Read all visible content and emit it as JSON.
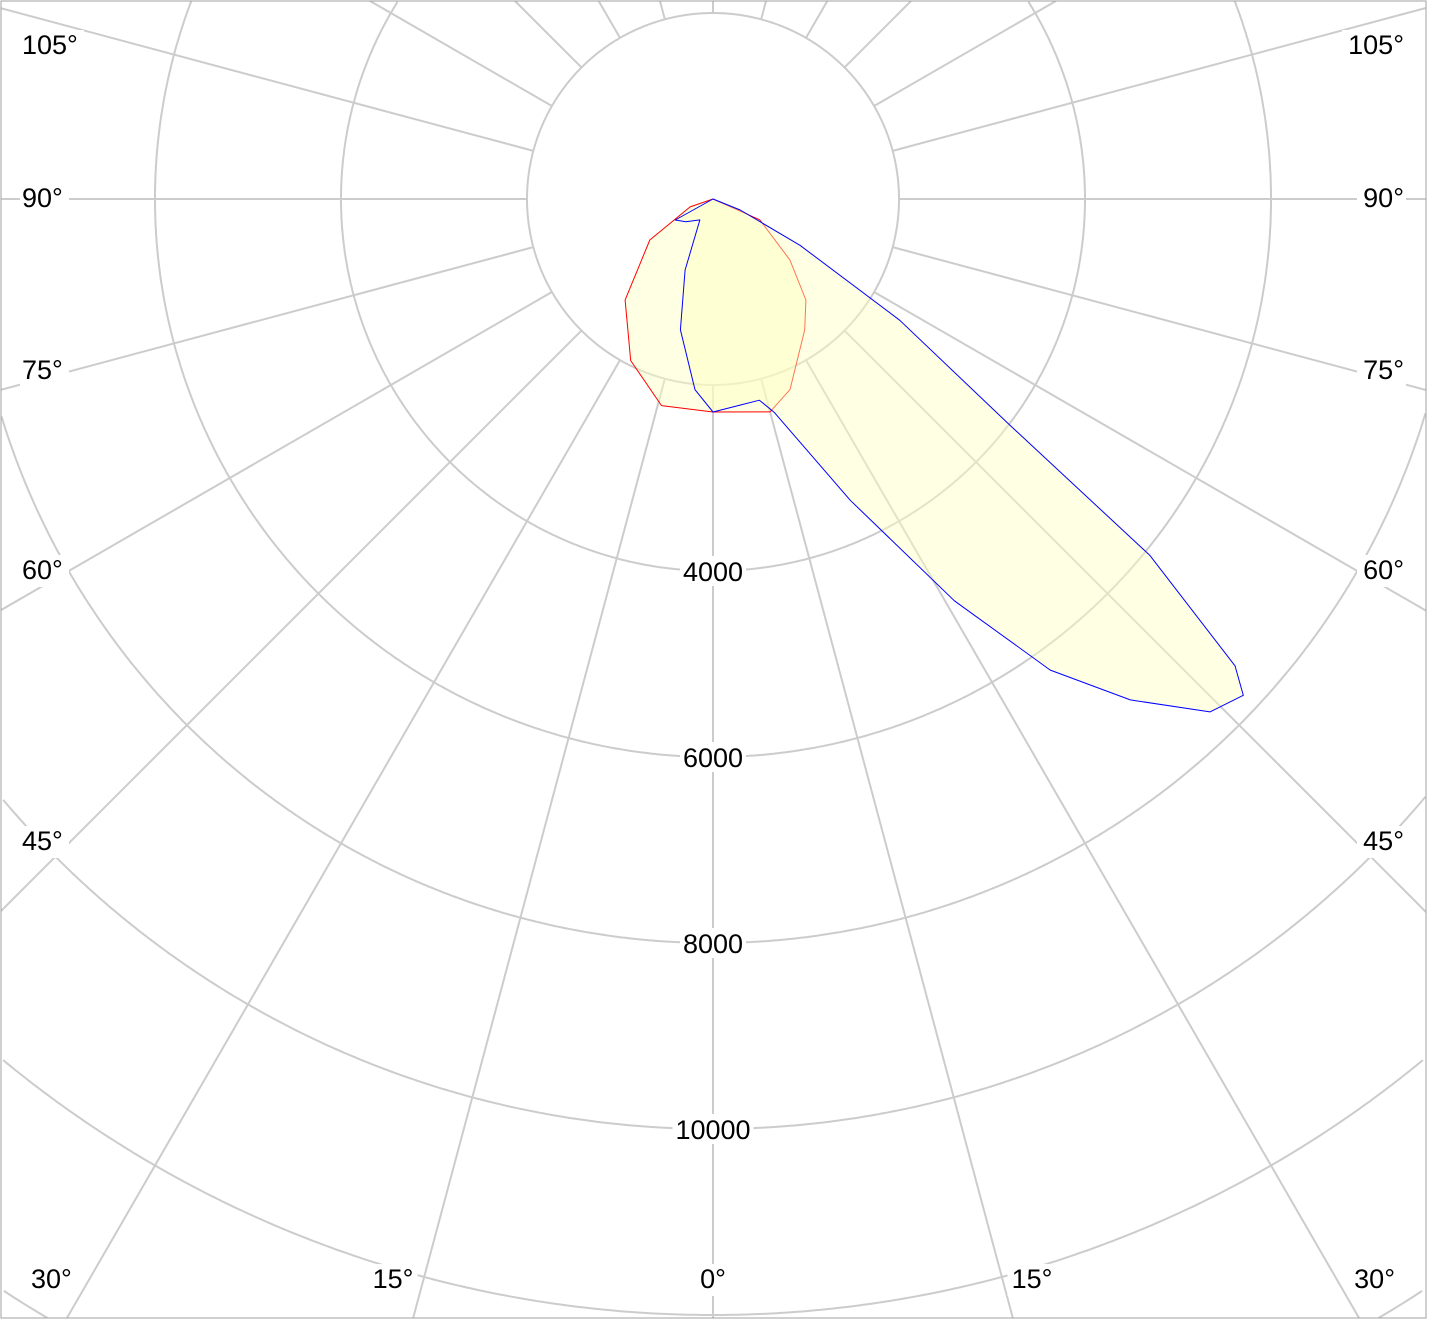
{
  "chart_data": {
    "type": "polar",
    "title": "",
    "radial_axis": {
      "ticks": [
        2000,
        4000,
        6000,
        8000,
        10000,
        12000,
        14000
      ],
      "tick_labels": [
        "4000",
        "6000",
        "8000",
        "10000"
      ],
      "range": [
        0,
        14000
      ]
    },
    "angular_axis": {
      "zero_direction": "down",
      "step_degrees": 15,
      "tick_labels_left": [
        "105°",
        "90°",
        "75°",
        "60°",
        "45°",
        "30°",
        "15°"
      ],
      "tick_labels_right": [
        "105°",
        "90°",
        "75°",
        "60°",
        "45°",
        "30°",
        "15°"
      ],
      "tick_label_bottom": "0°"
    },
    "grid": true,
    "colors": {
      "grid": "#cccccc",
      "fill": "#ffffc0",
      "series_a": "#ff0000",
      "series_b": "#0000ff"
    },
    "series": [
      {
        "color": "#ff0000",
        "points": [
          [
            -90,
            0
          ],
          [
            -71,
            260
          ],
          [
            -57,
            810
          ],
          [
            -41,
            1440
          ],
          [
            -27,
            1950
          ],
          [
            -14,
            2290
          ],
          [
            0,
            2290
          ],
          [
            15,
            2370
          ],
          [
            22,
            2210
          ],
          [
            35,
            1720
          ],
          [
            42.6,
            1475
          ],
          [
            51.6,
            1055
          ],
          [
            66,
            550
          ],
          [
            90,
            0
          ]
        ]
      },
      {
        "color": "#0000ff",
        "points": [
          [
            -90,
            0
          ],
          [
            -61,
            465
          ],
          [
            -50,
            380
          ],
          [
            -32,
            265
          ],
          [
            -21.5,
            820
          ],
          [
            -14,
            1450
          ],
          [
            -5.4,
            2060
          ],
          [
            0,
            2290
          ],
          [
            7.5,
            2235
          ],
          [
            13,
            2220
          ],
          [
            16,
            2385
          ],
          [
            24.5,
            3560
          ],
          [
            31,
            5040
          ],
          [
            35.6,
            6230
          ],
          [
            39.8,
            7010
          ],
          [
            44.1,
            7680
          ],
          [
            46.9,
            7810
          ],
          [
            48.2,
            7530
          ],
          [
            50.8,
            6060
          ],
          [
            52.7,
            4010
          ],
          [
            57,
            2395
          ],
          [
            62,
            1060
          ],
          [
            68,
            315
          ],
          [
            90,
            0
          ]
        ]
      }
    ]
  }
}
